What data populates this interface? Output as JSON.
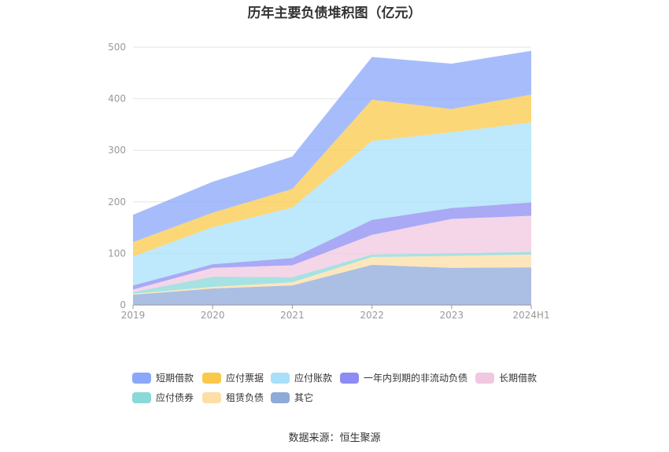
{
  "chart_data": {
    "type": "area",
    "stacked": true,
    "title": "历年主要负债堆积图（亿元）",
    "categories": [
      "2019",
      "2020",
      "2021",
      "2022",
      "2023",
      "2024H1"
    ],
    "ylim": [
      0,
      500
    ],
    "yticks": [
      "0",
      "100",
      "200",
      "300",
      "400",
      "500"
    ],
    "grid": true,
    "legend_position": "bottom",
    "series": [
      {
        "name": "其它",
        "color": "#8eaad9",
        "values": [
          20,
          32,
          38,
          78,
          72,
          73
        ]
      },
      {
        "name": "租赁负债",
        "color": "#fddea6",
        "values": [
          2,
          3,
          6,
          15,
          23,
          25
        ]
      },
      {
        "name": "应付债券",
        "color": "#8ad8d8",
        "values": [
          3,
          20,
          10,
          5,
          5,
          5
        ]
      },
      {
        "name": "长期借款",
        "color": "#f0c8e0",
        "values": [
          5,
          17,
          23,
          38,
          67,
          70
        ]
      },
      {
        "name": "一年内到期的非流动负债",
        "color": "#8c8cf2",
        "values": [
          8,
          7,
          14,
          29,
          21,
          26
        ]
      },
      {
        "name": "应付账款",
        "color": "#a8e0f9",
        "values": [
          56,
          72,
          98,
          153,
          147,
          155
        ]
      },
      {
        "name": "应付票据",
        "color": "#fbc94a",
        "values": [
          28,
          28,
          36,
          80,
          45,
          54
        ]
      },
      {
        "name": "短期借款",
        "color": "#8aa7f9",
        "values": [
          53,
          60,
          63,
          83,
          88,
          85
        ]
      }
    ],
    "legend_order": [
      "短期借款",
      "应付票据",
      "应付账款",
      "一年内到期的非流动负债",
      "长期借款",
      "应付债券",
      "租赁负债",
      "其它"
    ]
  },
  "source": "数据来源：恒生聚源"
}
